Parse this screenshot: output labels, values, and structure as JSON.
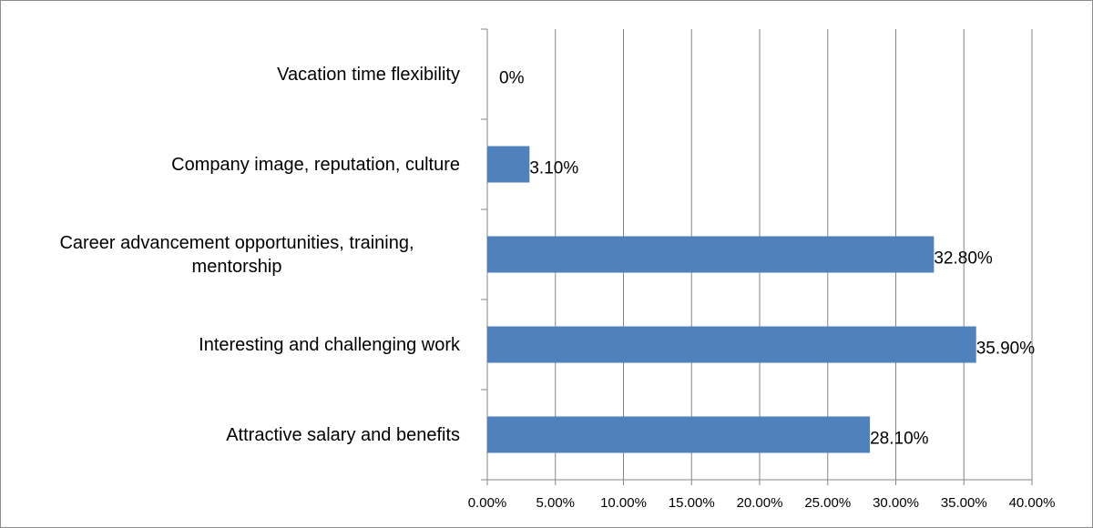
{
  "chart_data": {
    "type": "bar",
    "orientation": "horizontal",
    "categories": [
      "Attractive salary and benefits",
      "Interesting and challenging work",
      "Career advancement opportunities, training, mentorship",
      "Company image, reputation, culture",
      "Vacation time flexibility"
    ],
    "values": [
      28.1,
      35.9,
      32.8,
      3.1,
      0
    ],
    "value_labels": [
      "28.10%",
      "35.90%",
      "32.80%",
      "3.10%",
      "0%"
    ],
    "color": "#4f81bd",
    "xlim": [
      0,
      40
    ],
    "xticks": [
      {
        "value": 0,
        "label": "0.00%"
      },
      {
        "value": 5,
        "label": "5.00%"
      },
      {
        "value": 10,
        "label": "10.00%"
      },
      {
        "value": 15,
        "label": "15.00%"
      },
      {
        "value": 20,
        "label": "20.00%"
      },
      {
        "value": 25,
        "label": "25.00%"
      },
      {
        "value": 30,
        "label": "30.00%"
      },
      {
        "value": 35,
        "label": "35.00%"
      },
      {
        "value": 40,
        "label": "40.00%"
      }
    ],
    "grid": true
  }
}
